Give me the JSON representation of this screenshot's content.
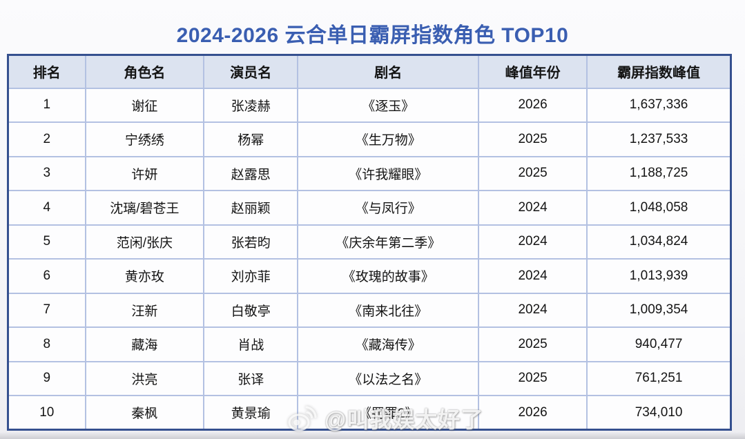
{
  "title": "2024-2026 云合单日霸屏指数角色 TOP10",
  "table": {
    "headers": [
      "排名",
      "角色名",
      "演员名",
      "剧名",
      "峰值年份",
      "霸屏指数峰值"
    ],
    "rows": [
      {
        "rank": "1",
        "character": "谢征",
        "actor": "张凌赫",
        "drama": "《逐玉》",
        "peak_year": "2026",
        "peak_index": "1,637,336"
      },
      {
        "rank": "2",
        "character": "宁绣绣",
        "actor": "杨幂",
        "drama": "《生万物》",
        "peak_year": "2025",
        "peak_index": "1,237,533"
      },
      {
        "rank": "3",
        "character": "许妍",
        "actor": "赵露思",
        "drama": "《许我耀眼》",
        "peak_year": "2025",
        "peak_index": "1,188,725"
      },
      {
        "rank": "4",
        "character": "沈璃/碧苍王",
        "actor": "赵丽颖",
        "drama": "《与凤行》",
        "peak_year": "2024",
        "peak_index": "1,048,058"
      },
      {
        "rank": "5",
        "character": "范闲/张庆",
        "actor": "张若昀",
        "drama": "《庆余年第二季》",
        "peak_year": "2024",
        "peak_index": "1,034,824"
      },
      {
        "rank": "6",
        "character": "黄亦玫",
        "actor": "刘亦菲",
        "drama": "《玫瑰的故事》",
        "peak_year": "2024",
        "peak_index": "1,013,939"
      },
      {
        "rank": "7",
        "character": "汪新",
        "actor": "白敬亭",
        "drama": "《南来北往》",
        "peak_year": "2024",
        "peak_index": "1,009,354"
      },
      {
        "rank": "8",
        "character": "藏海",
        "actor": "肖战",
        "drama": "《藏海传》",
        "peak_year": "2025",
        "peak_index": "940,477"
      },
      {
        "rank": "9",
        "character": "洪亮",
        "actor": "张译",
        "drama": "《以法之名》",
        "peak_year": "2025",
        "peak_index": "761,251"
      },
      {
        "rank": "10",
        "character": "秦枫",
        "actor": "黄景瑜",
        "drama": "《罚罪2》",
        "peak_year": "2026",
        "peak_index": "734,010"
      }
    ]
  },
  "watermark": {
    "icon": "weibo-icon",
    "text": "@叫我娱太好了"
  },
  "colors": {
    "title_blue": "#3a5eb1",
    "header_bg": "#dce3f0",
    "grid_line": "#b3c1e2",
    "outer_border": "#35508f",
    "body_bg": "#fdfdfe"
  }
}
